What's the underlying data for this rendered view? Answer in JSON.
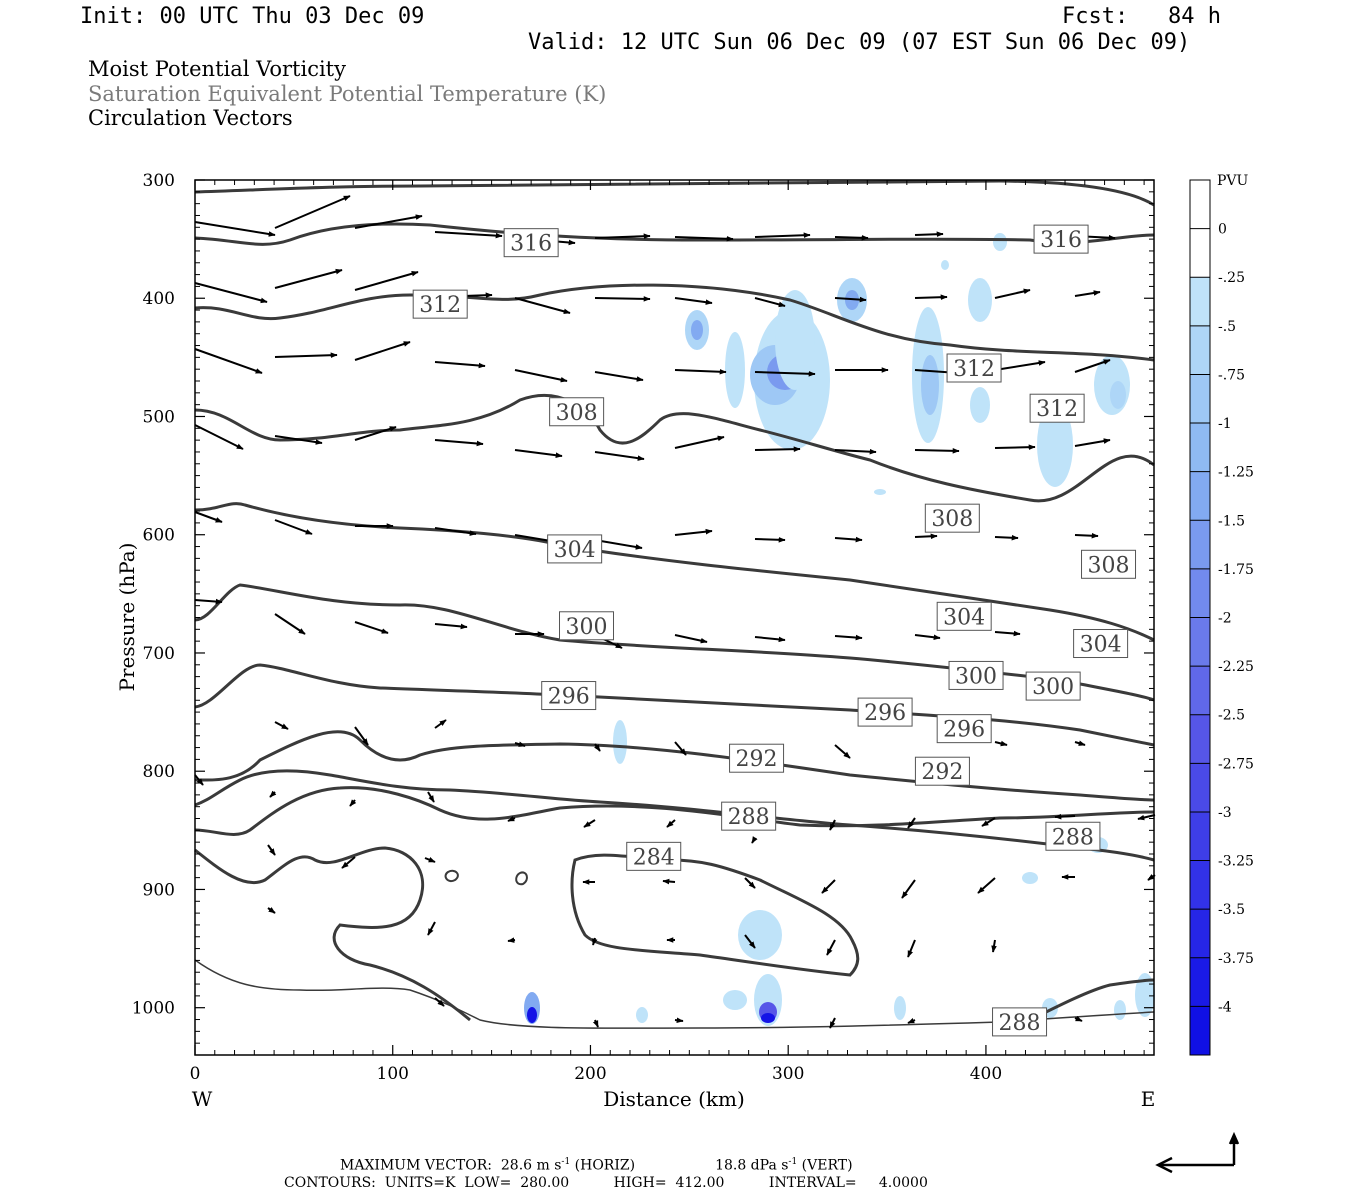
{
  "header": {
    "init": "Init: 00 UTC Thu 03 Dec 09",
    "fcst": "Fcst:   84 h",
    "valid": "Valid: 12 UTC Sun 06 Dec 09 (07 EST Sun 06 Dec 09)",
    "title1": "Moist Potential Vorticity",
    "title2": "Saturation Equivalent Potential Temperature (K)",
    "title3": "Circulation Vectors"
  },
  "footer": {
    "line1_a": "MAXIMUM VECTOR:  28.6 m s",
    "line1_sup": "-1",
    "line1_b": " (HORIZ)",
    "line1_c": "18.8 dPa s",
    "line1_sup2": "-1",
    "line1_d": " (VERT)",
    "line2": "CONTOURS:  UNITS=K  LOW=  280.00          HIGH=  412.00          INTERVAL=     4.0000"
  },
  "colors": {
    "contour": "#3a3a3a",
    "vector": "#000000",
    "mpv_light": "#bfe3f9",
    "mpv_dark": "#1414e6"
  },
  "chart_data": {
    "type": "heatmap",
    "xlabel": "Distance (km)",
    "ylabel": "Pressure (hPa)",
    "x_ticks": [
      "0",
      "100",
      "200",
      "300",
      "400"
    ],
    "x_ends": [
      "W",
      "E"
    ],
    "y_ticks": [
      "300",
      "400",
      "500",
      "600",
      "700",
      "800",
      "900",
      "1000"
    ],
    "xlim": [
      0,
      485
    ],
    "ylim": [
      1040,
      300
    ],
    "colorbar": {
      "label": "PVU",
      "ticks": [
        "0",
        "-.25",
        "-.5",
        "-.75",
        "-1",
        "-1.25",
        "-1.5",
        "-1.75",
        "-2",
        "-2.25",
        "-2.5",
        "-2.75",
        "-3",
        "-3.25",
        "-3.5",
        "-3.75",
        "-4"
      ],
      "colors": [
        "#ffffff",
        "#ffffff",
        "#bfe3f9",
        "#aed6f7",
        "#9ec8f5",
        "#8fbaf3",
        "#82aaf1",
        "#7a9aef",
        "#728aed",
        "#6a7aeb",
        "#6068e9",
        "#5656e8",
        "#4a4ae8",
        "#3e3ee8",
        "#3232e8",
        "#2626e6",
        "#1a1ae6",
        "#1010e4"
      ]
    },
    "contour_labels": [
      {
        "text": "316",
        "x": 170,
        "p": 353
      },
      {
        "text": "316",
        "x": 438,
        "p": 350
      },
      {
        "text": "312",
        "x": 124,
        "p": 405
      },
      {
        "text": "312",
        "x": 394,
        "p": 459
      },
      {
        "text": "312",
        "x": 436,
        "p": 493
      },
      {
        "text": "308",
        "x": 193,
        "p": 496
      },
      {
        "text": "308",
        "x": 383,
        "p": 586
      },
      {
        "text": "308",
        "x": 462,
        "p": 625
      },
      {
        "text": "304",
        "x": 192,
        "p": 612
      },
      {
        "text": "304",
        "x": 389,
        "p": 669
      },
      {
        "text": "304",
        "x": 458,
        "p": 692
      },
      {
        "text": "300",
        "x": 198,
        "p": 677
      },
      {
        "text": "300",
        "x": 395,
        "p": 719
      },
      {
        "text": "300",
        "x": 434,
        "p": 728
      },
      {
        "text": "296",
        "x": 189,
        "p": 736
      },
      {
        "text": "296",
        "x": 349,
        "p": 750
      },
      {
        "text": "296",
        "x": 389,
        "p": 764
      },
      {
        "text": "292",
        "x": 284,
        "p": 789
      },
      {
        "text": "292",
        "x": 378,
        "p": 800
      },
      {
        "text": "288",
        "x": 280,
        "p": 838
      },
      {
        "text": "288",
        "x": 444,
        "p": 855
      },
      {
        "text": "288",
        "x": 417,
        "p": 1012
      },
      {
        "text": "284",
        "x": 232,
        "p": 872
      }
    ]
  }
}
